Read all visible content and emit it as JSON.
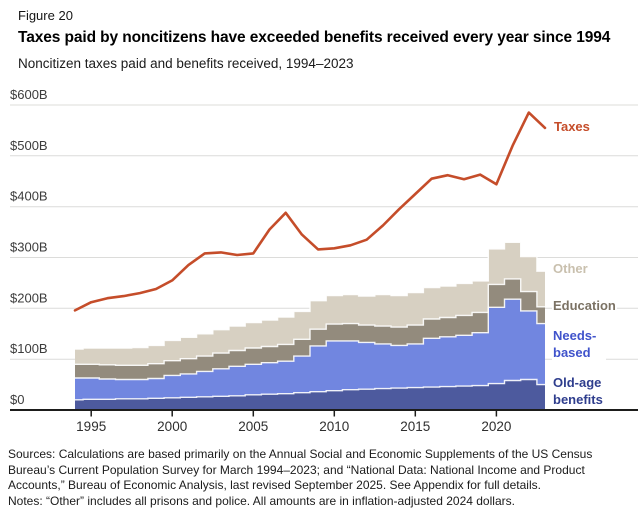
{
  "header": {
    "figure_label": "Figure 20",
    "title": "Taxes paid by noncitizens have exceeded benefits received every year since 1994",
    "subtitle": "Noncitizen taxes paid and benefits received, 1994–2023"
  },
  "legend": {
    "taxes": {
      "label": "Taxes",
      "color": "#c54d2a"
    },
    "other": {
      "label": "Other",
      "color": "#c9c0ae"
    },
    "education": {
      "label": "Education",
      "color": "#7b7264"
    },
    "needs_based": {
      "label": "Needs-based",
      "color": "#4053cb"
    },
    "old_age": {
      "label": "Old-age benefits",
      "color": "#2e3d8d"
    }
  },
  "footnotes": {
    "sources": "Sources: Calculations are based primarily on the Annual Social and Economic Supplements of the US Census Bureau’s Current Population Survey for March 1994–2023; and “National Data: National Income and Product Accounts,” Bureau of Economic Analysis, last revised September 2025. See Appendix for full details.",
    "notes": "Notes: “Other” includes all prisons and police. All amounts are in inflation-adjusted 2024 dollars."
  },
  "colors": {
    "background": "#ffffff",
    "gridline": "#dcdcda",
    "axis": "#1d1d1b",
    "tick_label": "#3c3c3c",
    "separator": "#ffffff"
  },
  "chart_data": {
    "type": "area",
    "subtype": "stacked-step-areas-with-line",
    "title": "Taxes paid by noncitizens have exceeded benefits received every year since 1994",
    "xlabel": "",
    "ylabel": "",
    "ylim": [
      0,
      600
    ],
    "grid": true,
    "legend_position": "right",
    "x": [
      1994,
      1995,
      1996,
      1997,
      1998,
      1999,
      2000,
      2001,
      2002,
      2003,
      2004,
      2005,
      2006,
      2007,
      2008,
      2009,
      2010,
      2011,
      2012,
      2013,
      2014,
      2015,
      2016,
      2017,
      2018,
      2019,
      2020,
      2021,
      2022,
      2023
    ],
    "stacked_series": [
      {
        "name": "Old-age benefits",
        "color": "#4d5a9e",
        "values": [
          20,
          21,
          21,
          22,
          22,
          23,
          24,
          25,
          26,
          27,
          28,
          30,
          31,
          32,
          34,
          36,
          38,
          40,
          41,
          42,
          43,
          44,
          45,
          46,
          47,
          48,
          52,
          58,
          60,
          50
        ]
      },
      {
        "name": "Needs-based",
        "color": "#7186e0",
        "values": [
          43,
          42,
          40,
          38,
          38,
          39,
          44,
          46,
          50,
          54,
          58,
          60,
          62,
          64,
          72,
          90,
          98,
          96,
          92,
          88,
          84,
          86,
          96,
          98,
          100,
          104,
          150,
          160,
          135,
          120
        ]
      },
      {
        "name": "Education",
        "color": "#938b7d",
        "values": [
          27,
          27,
          28,
          28,
          28,
          29,
          29,
          30,
          30,
          31,
          31,
          32,
          32,
          33,
          33,
          33,
          33,
          34,
          34,
          35,
          36,
          37,
          38,
          38,
          39,
          40,
          45,
          40,
          38,
          33
        ]
      },
      {
        "name": "Other",
        "color": "#d7d0c2",
        "values": [
          30,
          32,
          33,
          34,
          35,
          36,
          40,
          42,
          44,
          46,
          48,
          50,
          52,
          54,
          55,
          56,
          56,
          57,
          57,
          62,
          62,
          64,
          62,
          62,
          63,
          62,
          70,
          72,
          69,
          70
        ]
      }
    ],
    "line_series": {
      "name": "Taxes",
      "color": "#c54d2a",
      "values": [
        196,
        212,
        220,
        224,
        230,
        238,
        255,
        285,
        308,
        310,
        305,
        308,
        355,
        388,
        345,
        316,
        318,
        324,
        335,
        363,
        395,
        425,
        455,
        462,
        454,
        463,
        444,
        520,
        585,
        555
      ]
    },
    "yticks": [
      {
        "value": 0,
        "label": "$0"
      },
      {
        "value": 100,
        "label": "$100B"
      },
      {
        "value": 200,
        "label": "$200B"
      },
      {
        "value": 300,
        "label": "$300B"
      },
      {
        "value": 400,
        "label": "$400B"
      },
      {
        "value": 500,
        "label": "$500B"
      },
      {
        "value": 600,
        "label": "$600B"
      }
    ],
    "xticks": [
      {
        "value": 1995,
        "label": "1995"
      },
      {
        "value": 2000,
        "label": "2000"
      },
      {
        "value": 2005,
        "label": "2005"
      },
      {
        "value": 2010,
        "label": "2010"
      },
      {
        "value": 2015,
        "label": "2015"
      },
      {
        "value": 2020,
        "label": "2020"
      }
    ]
  }
}
